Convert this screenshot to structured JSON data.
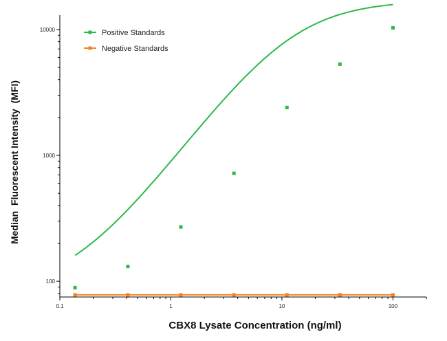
{
  "chart_data": {
    "type": "scatter",
    "title": "",
    "xlabel": "CBX8 Lysate Concentration (ng/ml)",
    "ylabel": "Median  Fluorescent Intensity  (MFI)",
    "xscale": "log",
    "yscale": "log",
    "xlim": [
      0.1,
      200
    ],
    "ylim": [
      75,
      13000
    ],
    "x_ticks": [
      {
        "value": 0.1,
        "label": "0.1"
      },
      {
        "value": 1,
        "label": "1"
      },
      {
        "value": 10,
        "label": "10"
      },
      {
        "value": 100,
        "label": "100"
      }
    ],
    "y_ticks": [
      {
        "value": 100,
        "label": "100"
      },
      {
        "value": 1000,
        "label": "1000"
      },
      {
        "value": 10000,
        "label": "10000"
      }
    ],
    "legend_position": "top-left",
    "grid": false,
    "series": [
      {
        "name": "Positive Standards",
        "color": "#2db84a",
        "x": [
          0.137,
          0.41,
          1.23,
          3.7,
          11.1,
          33.3,
          100
        ],
        "y": [
          89,
          131,
          270,
          720,
          2400,
          5300,
          10300
        ],
        "fit": "4PL curve"
      },
      {
        "name": "Negative Standards",
        "color": "#f5821f",
        "x": [
          0.137,
          0.41,
          1.23,
          3.7,
          11.1,
          33.3,
          100
        ],
        "y": [
          78,
          78,
          78,
          78,
          78,
          78,
          78
        ],
        "fit": "line"
      }
    ]
  }
}
